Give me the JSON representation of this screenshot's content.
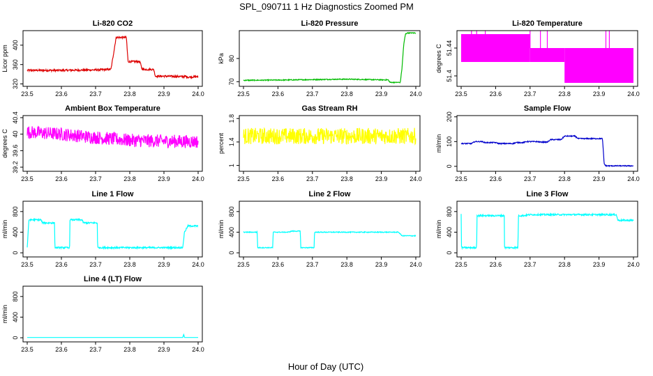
{
  "title": "SPL_090711  1 Hz Diagnostics Zoomed PM",
  "xlabel": "Hour of Day (UTC)",
  "chart_data": [
    {
      "type": "line",
      "title": "Li-820 CO2",
      "ylabel": "Licor ppm",
      "color": "#dd0000",
      "xlim": [
        23.5,
        24.0
      ],
      "ylim": [
        315,
        430
      ],
      "yticks": [
        320,
        360,
        400
      ],
      "xticks": [
        23.5,
        23.6,
        23.7,
        23.8,
        23.9,
        24.0
      ],
      "x": [
        23.5,
        23.6,
        23.7,
        23.745,
        23.752,
        23.76,
        23.78,
        23.79,
        23.795,
        23.8,
        23.83,
        23.835,
        23.84,
        23.87,
        23.875,
        23.9,
        23.96,
        23.962,
        23.97,
        24.0
      ],
      "y": [
        348,
        348,
        349,
        350,
        380,
        416,
        416,
        416,
        366,
        366,
        366,
        352,
        350,
        350,
        336,
        336,
        335,
        336,
        334,
        335
      ],
      "noise": 2
    },
    {
      "type": "line",
      "title": "Li-820 Pressure",
      "ylabel": "kPa",
      "color": "#00bb00",
      "xlim": [
        23.5,
        24.0
      ],
      "ylim": [
        68,
        92
      ],
      "yticks": [
        70,
        80
      ],
      "xticks": [
        23.5,
        23.6,
        23.7,
        23.8,
        23.9,
        24.0
      ],
      "x": [
        23.5,
        23.6,
        23.7,
        23.8,
        23.9,
        23.92,
        23.925,
        23.955,
        23.96,
        23.965,
        23.97,
        23.975,
        24.0
      ],
      "y": [
        70.6,
        70.7,
        70.9,
        71.1,
        70.8,
        70.8,
        69.7,
        69.7,
        76,
        86,
        90.5,
        91,
        91
      ],
      "noise": 0.2
    },
    {
      "type": "line",
      "title": "Li-820 Temperature",
      "ylabel": "degrees C",
      "color": "#ff00ff",
      "xlim": [
        23.5,
        24.0
      ],
      "ylim": [
        51.385,
        51.465
      ],
      "yticks": [
        51.4,
        51.44
      ],
      "xticks": [
        23.5,
        23.6,
        23.7,
        23.8,
        23.9,
        24.0
      ],
      "x": [
        23.5,
        23.7,
        23.701,
        23.8,
        23.801,
        24.0
      ],
      "y": [
        51.44,
        51.44,
        51.43,
        51.43,
        51.42,
        51.42
      ],
      "band": [
        [
          23.5,
          23.7,
          51.42,
          51.46
        ],
        [
          23.7,
          23.8,
          51.42,
          51.44
        ],
        [
          23.8,
          24.0,
          51.39,
          51.44
        ]
      ],
      "noise": 0
    },
    {
      "type": "line",
      "title": "Ambient Box Temperature",
      "ylabel": "degrees C",
      "color": "#ff00ff",
      "xlim": [
        23.5,
        24.0
      ],
      "ylim": [
        39.1,
        40.45
      ],
      "yticks": [
        39.2,
        39.6,
        40.0,
        40.4
      ],
      "xticks": [
        23.5,
        23.6,
        23.7,
        23.8,
        23.9,
        24.0
      ],
      "x": [
        23.5,
        23.6,
        23.7,
        23.8,
        23.9,
        24.0
      ],
      "y": [
        40.05,
        40.0,
        39.92,
        39.85,
        39.83,
        39.82
      ],
      "noise": 0.16
    },
    {
      "type": "line",
      "title": "Gas Stream RH",
      "ylabel": "percent",
      "color": "#ffff00",
      "xlim": [
        23.5,
        24.0
      ],
      "ylim": [
        0.9,
        1.85
      ],
      "yticks": [
        1.0,
        1.4,
        1.8
      ],
      "xticks": [
        23.5,
        23.6,
        23.7,
        23.8,
        23.9,
        24.0
      ],
      "x": [
        23.5,
        24.0
      ],
      "y": [
        1.5,
        1.5
      ],
      "noise": 0.14
    },
    {
      "type": "line",
      "title": "Sample Flow",
      "ylabel": "ml/min",
      "color": "#0000cc",
      "xlim": [
        23.5,
        24.0
      ],
      "ylim": [
        -20,
        205
      ],
      "yticks": [
        0,
        100,
        200
      ],
      "xticks": [
        23.5,
        23.6,
        23.7,
        23.8,
        23.9,
        24.0
      ],
      "x": [
        23.5,
        23.53,
        23.54,
        23.56,
        23.57,
        23.6,
        23.61,
        23.65,
        23.66,
        23.68,
        23.69,
        23.72,
        23.73,
        23.75,
        23.76,
        23.79,
        23.8,
        23.83,
        23.84,
        23.91,
        23.915,
        23.92,
        24.0
      ],
      "y": [
        92,
        92,
        100,
        100,
        96,
        96,
        92,
        92,
        96,
        96,
        100,
        100,
        98,
        98,
        108,
        108,
        122,
        122,
        112,
        112,
        10,
        2,
        2
      ],
      "noise": 2
    },
    {
      "type": "line",
      "title": "Line 1 Flow",
      "ylabel": "ml/min",
      "color": "#00ffff",
      "xlim": [
        23.5,
        24.0
      ],
      "ylim": [
        -80,
        1000
      ],
      "yticks": [
        0,
        400,
        800
      ],
      "xticks": [
        23.5,
        23.6,
        23.7,
        23.8,
        23.9,
        24.0
      ],
      "x": [
        23.5,
        23.505,
        23.54,
        23.545,
        23.58,
        23.581,
        23.624,
        23.625,
        23.66,
        23.665,
        23.705,
        23.706,
        23.955,
        23.96,
        23.97,
        24.0
      ],
      "y": [
        100,
        640,
        640,
        580,
        580,
        100,
        100,
        640,
        640,
        580,
        580,
        100,
        100,
        400,
        520,
        520
      ],
      "noise": 15
    },
    {
      "type": "line",
      "title": "Line 2 Flow",
      "ylabel": "ml/min",
      "color": "#00ffff",
      "xlim": [
        23.5,
        24.0
      ],
      "ylim": [
        -80,
        1000
      ],
      "yticks": [
        0,
        400,
        800
      ],
      "xticks": [
        23.5,
        23.6,
        23.7,
        23.8,
        23.9,
        24.0
      ],
      "x": [
        23.5,
        23.54,
        23.541,
        23.585,
        23.586,
        23.63,
        23.64,
        23.665,
        23.666,
        23.705,
        23.706,
        23.95,
        23.96,
        24.0
      ],
      "y": [
        400,
        400,
        100,
        100,
        400,
        400,
        420,
        420,
        100,
        100,
        400,
        400,
        330,
        330
      ],
      "noise": 8
    },
    {
      "type": "line",
      "title": "Line 3 Flow",
      "ylabel": "ml/min",
      "color": "#00ffff",
      "xlim": [
        23.5,
        24.0
      ],
      "ylim": [
        -80,
        1000
      ],
      "yticks": [
        0,
        400,
        800
      ],
      "xticks": [
        23.5,
        23.6,
        23.7,
        23.8,
        23.9,
        24.0
      ],
      "x": [
        23.5,
        23.501,
        23.502,
        23.545,
        23.546,
        23.625,
        23.626,
        23.665,
        23.666,
        23.68,
        23.7,
        23.95,
        23.955,
        24.0
      ],
      "y": [
        750,
        100,
        100,
        100,
        720,
        720,
        100,
        100,
        720,
        720,
        740,
        740,
        630,
        630
      ],
      "noise": 15
    },
    {
      "type": "line",
      "title": "Line 4 (LT) Flow",
      "ylabel": "ml/min",
      "color": "#00ffff",
      "xlim": [
        23.5,
        24.0
      ],
      "ylim": [
        -80,
        1000
      ],
      "yticks": [
        0,
        400,
        800
      ],
      "xticks": [
        23.5,
        23.6,
        23.7,
        23.8,
        23.9,
        24.0
      ],
      "x": [
        23.5,
        23.955,
        23.958,
        23.96,
        23.962,
        24.0
      ],
      "y": [
        5,
        5,
        70,
        5,
        5,
        5
      ],
      "noise": 0
    }
  ]
}
